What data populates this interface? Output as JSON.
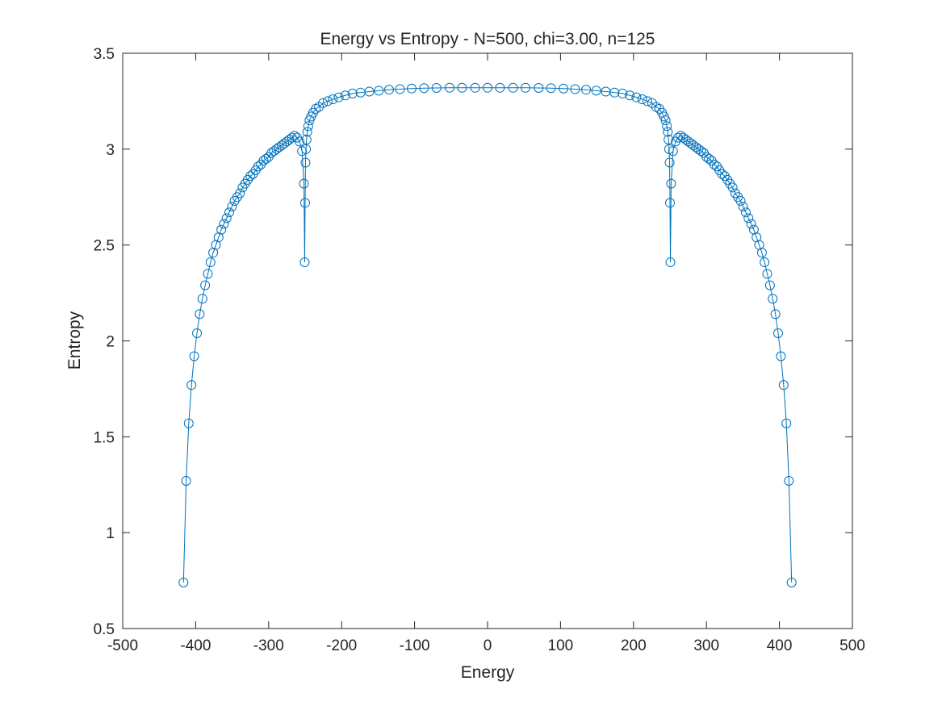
{
  "chart_data": {
    "type": "line",
    "title": "Energy vs Entropy - N=500, chi=3.00, n=125",
    "xlabel": "Energy",
    "ylabel": "Entropy",
    "xlim": [
      -500,
      500
    ],
    "ylim": [
      0.5,
      3.5
    ],
    "xticks": [
      -500,
      -400,
      -300,
      -200,
      -100,
      0,
      100,
      200,
      300,
      400,
      500
    ],
    "xtick_labels": [
      "-500",
      "-400",
      "-300",
      "-200",
      "-100",
      "0",
      "100",
      "200",
      "300",
      "400",
      "500"
    ],
    "yticks": [
      0.5,
      1,
      1.5,
      2,
      2.5,
      3,
      3.5
    ],
    "ytick_labels": [
      "0.5",
      "1",
      "1.5",
      "2",
      "2.5",
      "3",
      "3.5"
    ],
    "grid": false,
    "legend": "none",
    "marker": "circle-open",
    "series_color": "#0072BD",
    "series": [
      {
        "x": [
          -416.7,
          -413.0,
          -409.5,
          -405.8,
          -402.0,
          -398.2,
          -394.5,
          -390.7,
          -387.0,
          -383.3,
          -379.6,
          -376.0,
          -372.3,
          -368.6,
          -364.9,
          -361.3,
          -357.6,
          -354.0,
          -350.3,
          -346.7,
          -343.1,
          -339.4,
          -335.8,
          -332.2,
          -328.6,
          -325.0,
          -321.4,
          -317.8,
          -314.2,
          -310.6,
          -307.0,
          -303.4,
          -299.9,
          -296.3,
          -292.8,
          -289.2,
          -285.7,
          -282.1,
          -278.6,
          -275.1,
          -271.6,
          -268.1,
          -264.6,
          -261.1,
          -257.7,
          -254.2,
          -251.6,
          -250.6,
          -250.0,
          -249.5,
          -248.8,
          -248.0,
          -247.0,
          -245.7,
          -244.0,
          -241.8,
          -239.0,
          -235.5,
          -231.0,
          -225.5,
          -219.0,
          -212.0,
          -204.0,
          -195.0,
          -185.0,
          -174.0,
          -162.0,
          -149.0,
          -135.0,
          -120.0,
          -104.0,
          -87.0,
          -70.0,
          -52.0,
          -35.0,
          -17.0,
          0.0,
          17.0,
          35.0,
          52.0,
          70.0,
          87.0,
          104.0,
          120.0,
          135.0,
          149.0,
          162.0,
          174.0,
          185.0,
          195.0,
          204.0,
          212.0,
          219.0,
          225.5,
          231.0,
          235.5,
          239.0,
          241.8,
          244.0,
          245.7,
          247.0,
          248.0,
          248.8,
          249.5,
          250.0,
          250.6,
          251.6,
          254.2,
          257.7,
          261.1,
          264.6,
          268.1,
          271.6,
          275.1,
          278.6,
          282.1,
          285.7,
          289.2,
          292.8,
          296.3,
          299.9,
          303.4,
          307.0,
          310.6,
          314.2,
          317.8,
          321.4,
          325.0,
          328.6,
          332.2,
          335.8,
          339.4,
          343.1,
          346.7,
          350.3,
          354.0,
          357.6,
          361.3,
          364.9,
          368.6,
          372.3,
          376.0,
          379.6,
          383.3,
          387.0,
          390.7,
          394.5,
          398.2,
          402.0,
          405.8,
          409.5,
          413.0,
          416.7
        ],
        "y": [
          0.74,
          1.27,
          1.57,
          1.77,
          1.92,
          2.04,
          2.14,
          2.22,
          2.29,
          2.35,
          2.41,
          2.46,
          2.5,
          2.54,
          2.58,
          2.61,
          2.64,
          2.67,
          2.7,
          2.73,
          2.75,
          2.77,
          2.8,
          2.82,
          2.84,
          2.86,
          2.87,
          2.89,
          2.91,
          2.92,
          2.94,
          2.95,
          2.96,
          2.98,
          2.99,
          3.0,
          3.01,
          3.02,
          3.03,
          3.04,
          3.05,
          3.06,
          3.07,
          3.06,
          3.04,
          2.99,
          2.82,
          2.41,
          2.72,
          2.93,
          3.0,
          3.05,
          3.09,
          3.12,
          3.15,
          3.17,
          3.19,
          3.21,
          3.22,
          3.24,
          3.25,
          3.26,
          3.27,
          3.28,
          3.29,
          3.295,
          3.3,
          3.305,
          3.31,
          3.313,
          3.316,
          3.318,
          3.319,
          3.32,
          3.32,
          3.32,
          3.32,
          3.32,
          3.32,
          3.32,
          3.319,
          3.318,
          3.316,
          3.313,
          3.31,
          3.305,
          3.3,
          3.295,
          3.29,
          3.28,
          3.27,
          3.26,
          3.25,
          3.24,
          3.22,
          3.21,
          3.19,
          3.17,
          3.15,
          3.12,
          3.09,
          3.05,
          3.0,
          2.93,
          2.72,
          2.41,
          2.82,
          2.99,
          3.04,
          3.06,
          3.07,
          3.06,
          3.05,
          3.04,
          3.03,
          3.02,
          3.01,
          3.0,
          2.99,
          2.98,
          2.96,
          2.95,
          2.94,
          2.92,
          2.91,
          2.89,
          2.87,
          2.86,
          2.84,
          2.82,
          2.8,
          2.77,
          2.75,
          2.73,
          2.7,
          2.67,
          2.64,
          2.61,
          2.58,
          2.54,
          2.5,
          2.46,
          2.41,
          2.35,
          2.29,
          2.22,
          2.14,
          2.04,
          1.92,
          1.77,
          1.57,
          1.27,
          0.74
        ]
      }
    ]
  }
}
